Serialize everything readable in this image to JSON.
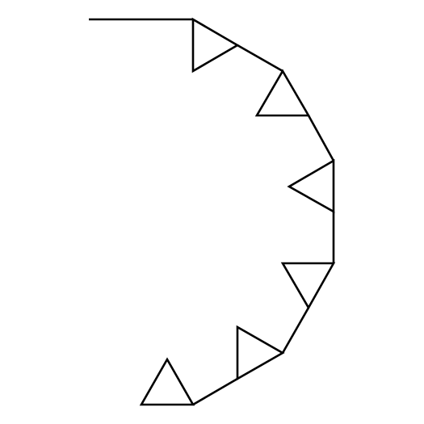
{
  "diagram": {
    "stroke_color": "#000000",
    "background_color": "#ffffff",
    "markers": [
      {
        "id": 1,
        "shape": "triangle"
      },
      {
        "id": 2,
        "shape": "triangle"
      },
      {
        "id": 3,
        "shape": "triangle"
      },
      {
        "id": 4,
        "shape": "triangle"
      },
      {
        "id": 5,
        "shape": "triangle"
      },
      {
        "id": 6,
        "shape": "triangle"
      }
    ]
  }
}
